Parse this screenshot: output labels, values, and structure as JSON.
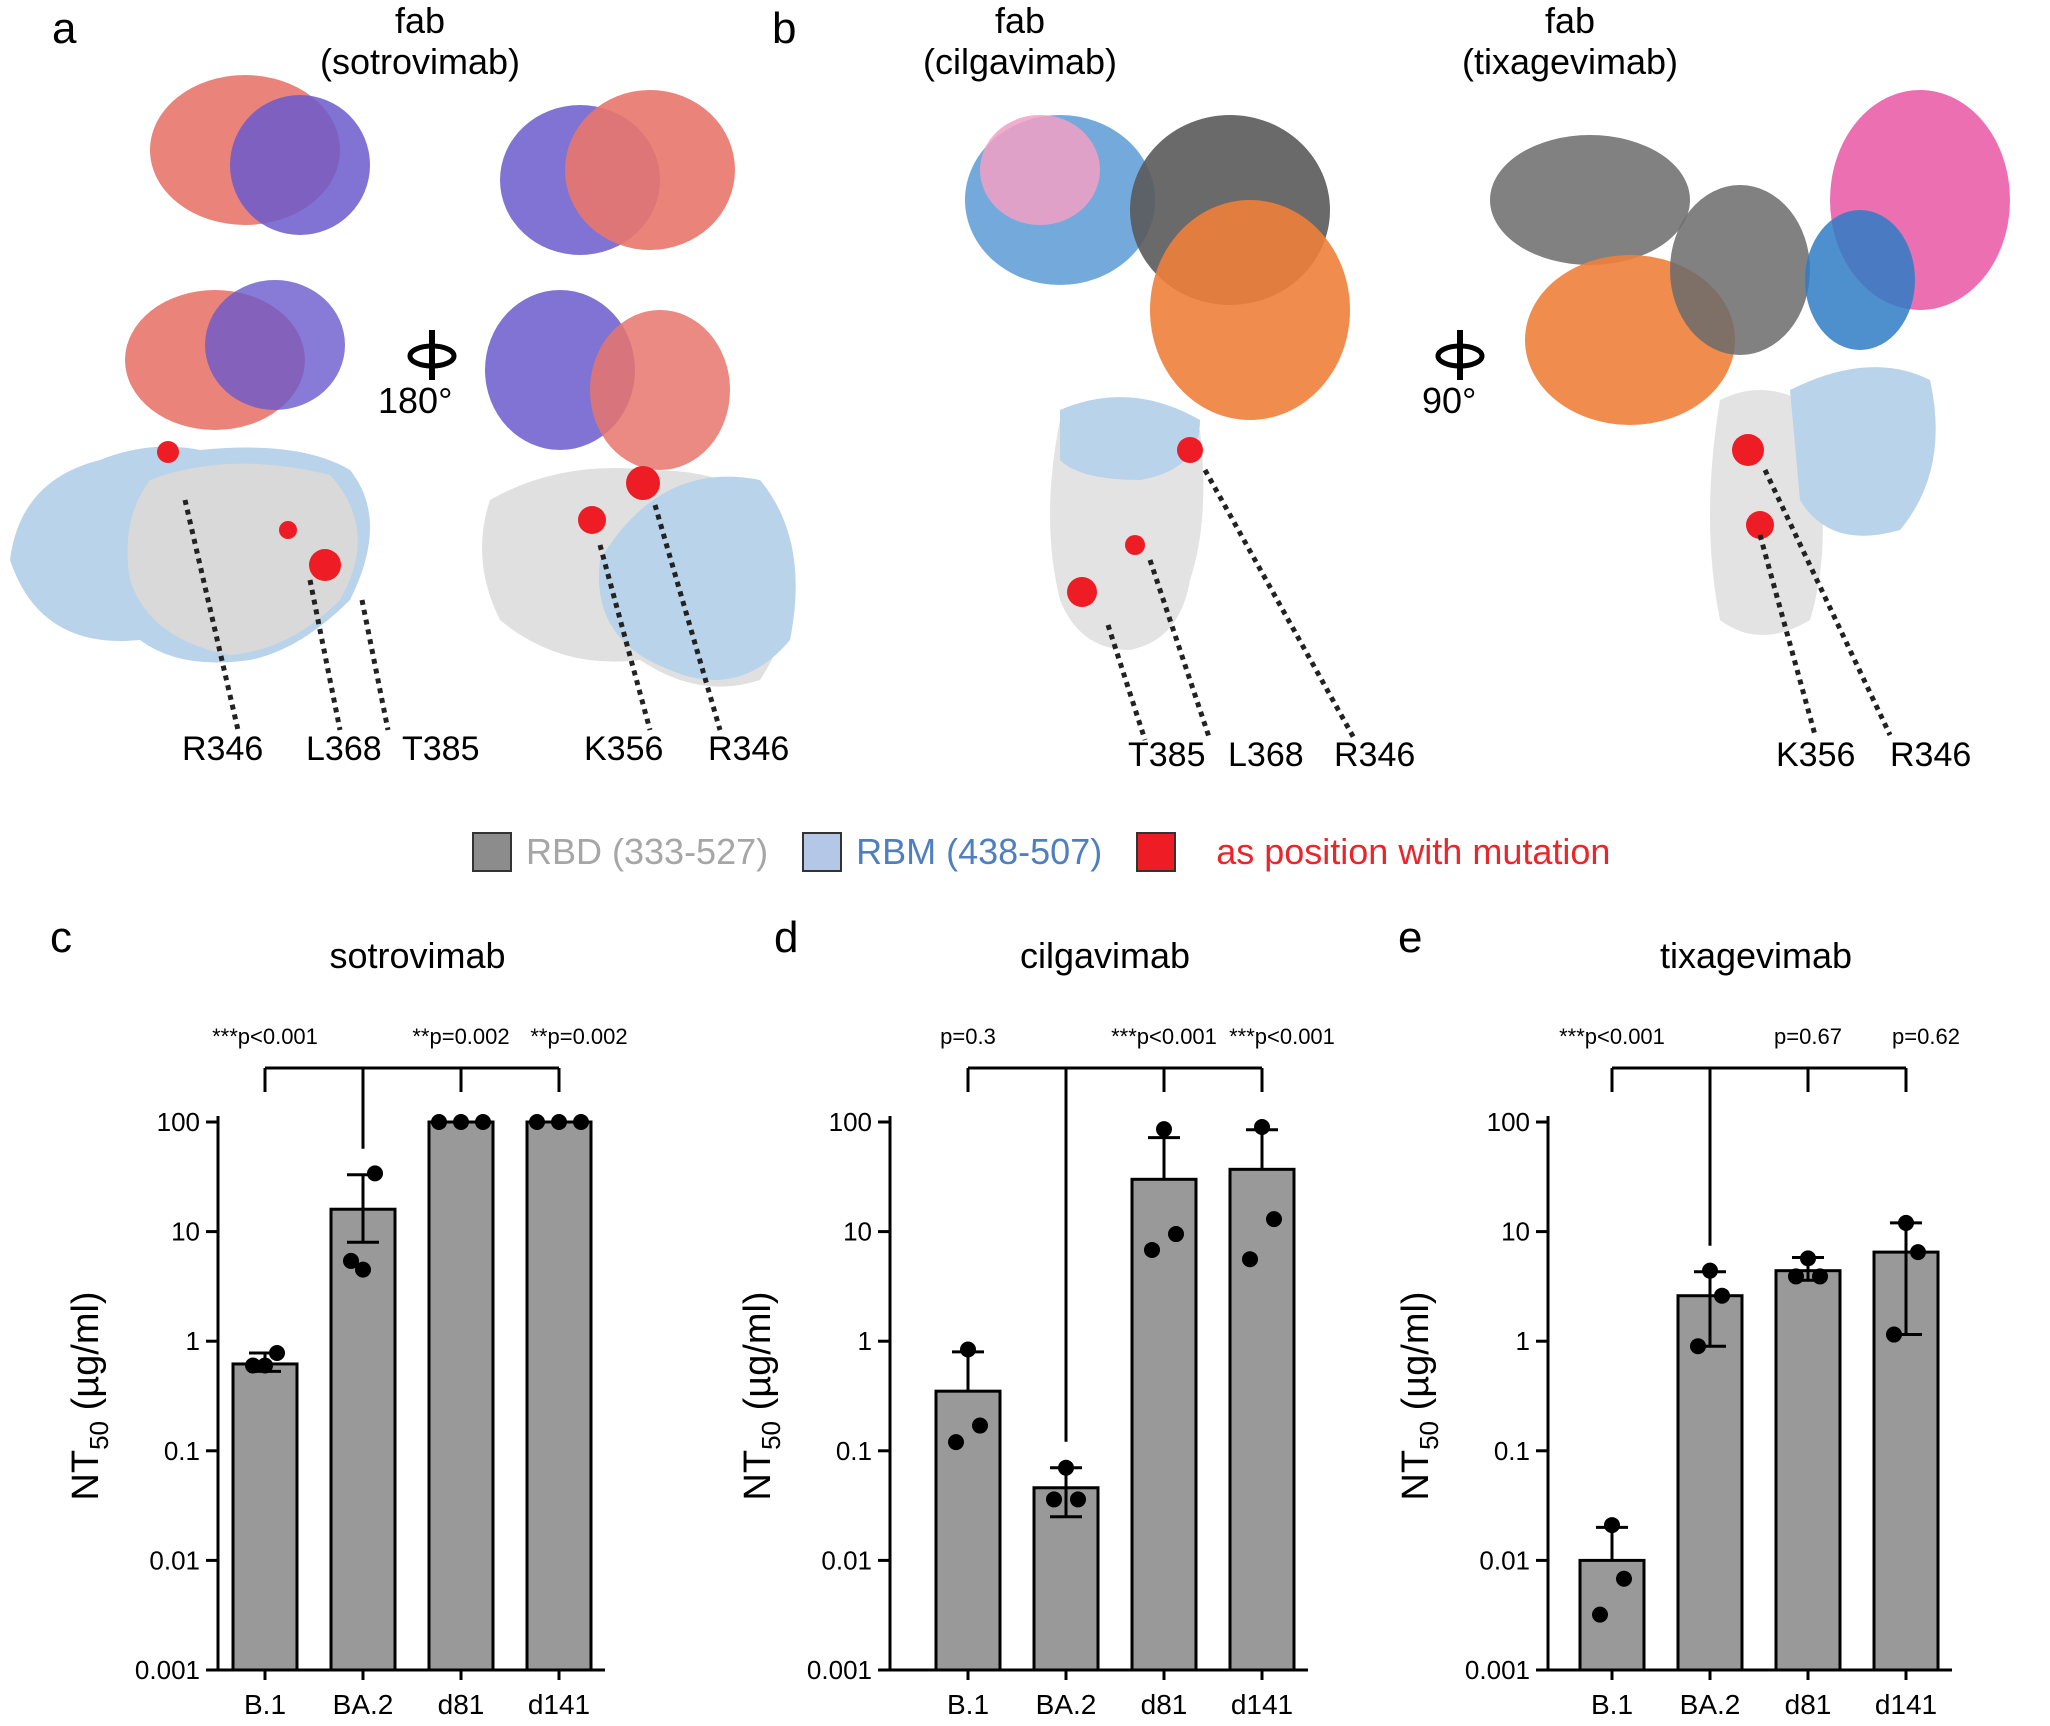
{
  "panels": {
    "a": {
      "letter": "a",
      "fab_label": "fab",
      "antibody": "(sotrovimab)",
      "rotation": "180°",
      "residues_left": [
        "R346",
        "L368",
        "T385"
      ],
      "residues_right": [
        "K356",
        "R346"
      ]
    },
    "b": {
      "letter": "b",
      "fab_label_1": "fab",
      "antibody_1": "(cilgavimab)",
      "fab_label_2": "fab",
      "antibody_2": "(tixagevimab)",
      "rotation": "90°",
      "residues_left": [
        "T385",
        "L368",
        "R346"
      ],
      "residues_right": [
        "K356",
        "R346"
      ]
    }
  },
  "legend": {
    "items": [
      {
        "label": "RBD (333-527)",
        "swatch": "#8c8c8c",
        "text_color": "#a6a6a6"
      },
      {
        "label": "RBM (438-507)",
        "swatch": "#b4c7e7",
        "text_color": "#4f7fc0"
      },
      {
        "label": "as position with mutation",
        "swatch": "#ee1c24",
        "text_color": "#e8262b"
      }
    ]
  },
  "colors": {
    "rbd_surface": "#e3e3e3",
    "rbm_surface": "#b9d3ea",
    "mutation": "#ee1c24",
    "sotrovimab_heavy": "#e8766c",
    "sotrovimab_light": "#6a5acd",
    "cilgavimab_heavy": "#f07f3c",
    "cilgavimab_light": "#5b9bd5",
    "tixagevimab_heavy": "#6b6b6b",
    "tixagevimab_light": "#f08fc0",
    "bar_fill": "#999999"
  },
  "chart_data": [
    {
      "letter": "c",
      "type": "bar",
      "title": "sotrovimab",
      "ylabel": "NT",
      "ylabel_sub": "50",
      "ylabel_unit": " (µg/ml)",
      "yscale": "log",
      "ylim": [
        0.001,
        100
      ],
      "yticks": [
        "0.001",
        "0.01",
        "0.1",
        "1",
        "10",
        "100"
      ],
      "categories": [
        "B.1",
        "BA.2",
        "d81",
        "d141"
      ],
      "values": [
        0.62,
        16,
        100,
        100
      ],
      "error_upper": [
        0.78,
        33,
        100,
        100
      ],
      "error_lower": [
        0.53,
        8,
        100,
        100
      ],
      "points": [
        [
          0.6,
          0.78,
          0.6
        ],
        [
          4.5,
          34,
          5.4
        ],
        [
          100,
          100,
          100
        ],
        [
          100,
          100,
          100
        ]
      ],
      "comparisons": [
        {
          "to": "B.1",
          "text": "***p<0.001"
        },
        {
          "to": "d81",
          "text": "**p=0.002"
        },
        {
          "to": "d141",
          "text": "**p=0.002"
        }
      ]
    },
    {
      "letter": "d",
      "type": "bar",
      "title": "cilgavimab",
      "ylabel": "NT",
      "ylabel_sub": "50",
      "ylabel_unit": " (µg/ml)",
      "yscale": "log",
      "ylim": [
        0.001,
        100
      ],
      "yticks": [
        "0.001",
        "0.01",
        "0.1",
        "1",
        "10",
        "100"
      ],
      "categories": [
        "B.1",
        "BA.2",
        "d81",
        "d141"
      ],
      "values": [
        0.35,
        0.046,
        30,
        37
      ],
      "error_upper": [
        0.8,
        0.07,
        72,
        85
      ],
      "error_lower": [
        0.35,
        0.025,
        30,
        37
      ],
      "points": [
        [
          0.84,
          0.17,
          0.12
        ],
        [
          0.07,
          0.036,
          0.036
        ],
        [
          86,
          9.5,
          6.8
        ],
        [
          90,
          13,
          5.6
        ]
      ],
      "comparisons": [
        {
          "to": "B.1",
          "text": "p=0.3"
        },
        {
          "to": "d81",
          "text": "***p<0.001"
        },
        {
          "to": "d141",
          "text": "***p<0.001"
        }
      ]
    },
    {
      "letter": "e",
      "type": "bar",
      "title": "tixagevimab",
      "ylabel": "NT",
      "ylabel_sub": "50",
      "ylabel_unit": " (µg/ml)",
      "yscale": "log",
      "ylim": [
        0.001,
        100
      ],
      "yticks": [
        "0.001",
        "0.01",
        "0.1",
        "1",
        "10",
        "100"
      ],
      "categories": [
        "B.1",
        "BA.2",
        "d81",
        "d141"
      ],
      "values": [
        0.01,
        2.6,
        4.4,
        6.5
      ],
      "error_upper": [
        0.02,
        4.3,
        5.8,
        12
      ],
      "error_lower": [
        0.01,
        0.9,
        3.6,
        1.15
      ],
      "points": [
        [
          0.021,
          0.0068,
          0.0032
        ],
        [
          4.4,
          2.6,
          0.9
        ],
        [
          5.7,
          3.9,
          3.9
        ],
        [
          12,
          6.5,
          1.15
        ]
      ],
      "comparisons": [
        {
          "to": "B.1",
          "text": "***p<0.001"
        },
        {
          "to": "d81",
          "text": "p=0.67"
        },
        {
          "to": "d141",
          "text": "p=0.62"
        }
      ]
    }
  ]
}
